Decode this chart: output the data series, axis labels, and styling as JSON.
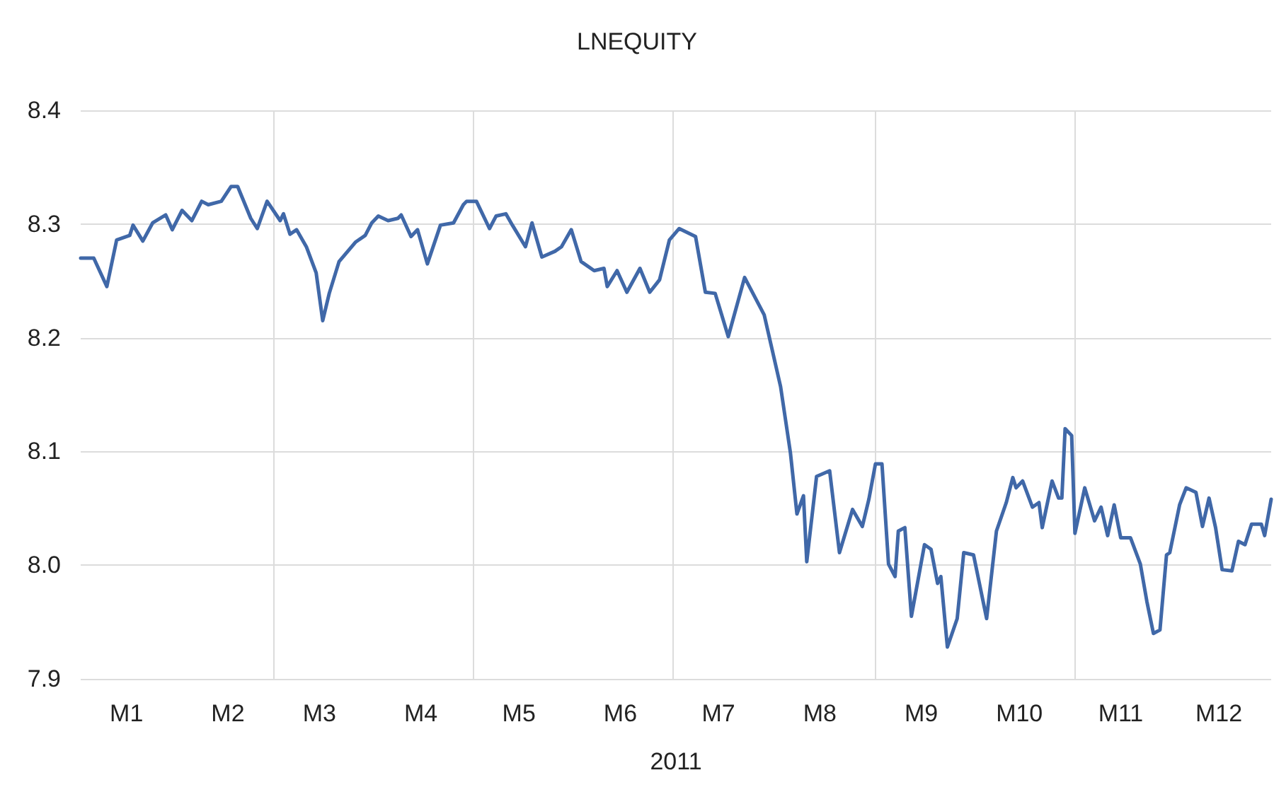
{
  "chart_data": {
    "type": "line",
    "title": "LNEQUITY",
    "xlabel": "2011",
    "x": [
      "2011-01-01",
      "2011-01-05",
      "2011-01-09",
      "2011-01-12",
      "2011-01-16",
      "2011-01-17",
      "2011-01-20",
      "2011-01-23",
      "2011-01-27",
      "2011-01-29",
      "2011-02-01",
      "2011-02-04",
      "2011-02-07",
      "2011-02-09",
      "2011-02-13",
      "2011-02-16",
      "2011-02-18",
      "2011-02-22",
      "2011-02-24",
      "2011-02-27",
      "2011-03-03",
      "2011-03-04",
      "2011-03-06",
      "2011-03-08",
      "2011-03-11",
      "2011-03-14",
      "2011-03-16",
      "2011-03-18",
      "2011-03-21",
      "2011-03-26",
      "2011-03-29",
      "2011-03-31",
      "2011-04-02",
      "2011-04-05",
      "2011-04-08",
      "2011-04-09",
      "2011-04-12",
      "2011-04-14",
      "2011-04-17",
      "2011-04-21",
      "2011-04-25",
      "2011-04-28",
      "2011-04-29",
      "2011-05-02",
      "2011-05-06",
      "2011-05-08",
      "2011-05-11",
      "2011-05-13",
      "2011-05-17",
      "2011-05-19",
      "2011-05-22",
      "2011-05-26",
      "2011-05-28",
      "2011-05-31",
      "2011-06-03",
      "2011-06-07",
      "2011-06-10",
      "2011-06-11",
      "2011-06-14",
      "2011-06-17",
      "2011-06-21",
      "2011-06-24",
      "2011-06-27",
      "2011-06-30",
      "2011-07-03",
      "2011-07-08",
      "2011-07-11",
      "2011-07-14",
      "2011-07-18",
      "2011-07-23",
      "2011-07-29",
      "2011-08-03",
      "2011-08-06",
      "2011-08-08",
      "2011-08-10",
      "2011-08-11",
      "2011-08-14",
      "2011-08-18",
      "2011-08-21",
      "2011-08-25",
      "2011-08-28",
      "2011-08-30",
      "2011-09-01",
      "2011-09-03",
      "2011-09-05",
      "2011-09-07",
      "2011-09-08",
      "2011-09-10",
      "2011-09-12",
      "2011-09-16",
      "2011-09-18",
      "2011-09-20",
      "2011-09-21",
      "2011-09-23",
      "2011-09-26",
      "2011-09-28",
      "2011-10-01",
      "2011-10-05",
      "2011-10-08",
      "2011-10-11",
      "2011-10-13",
      "2011-10-14",
      "2011-10-16",
      "2011-10-19",
      "2011-10-21",
      "2011-10-22",
      "2011-10-25",
      "2011-10-27",
      "2011-10-28",
      "2011-10-29",
      "2011-10-31",
      "2011-11-01",
      "2011-11-04",
      "2011-11-07",
      "2011-11-09",
      "2011-11-11",
      "2011-11-13",
      "2011-11-15",
      "2011-11-18",
      "2011-11-21",
      "2011-11-23",
      "2011-11-25",
      "2011-11-27",
      "2011-11-29",
      "2011-11-30",
      "2011-12-03",
      "2011-12-05",
      "2011-12-08",
      "2011-12-10",
      "2011-12-12",
      "2011-12-14",
      "2011-12-16",
      "2011-12-19",
      "2011-12-21",
      "2011-12-23",
      "2011-12-25",
      "2011-12-28",
      "2011-12-29",
      "2011-12-31"
    ],
    "series": [
      {
        "color": "#4068a8",
        "values": [
          8.27,
          8.27,
          8.245,
          8.286,
          8.29,
          8.299,
          8.285,
          8.301,
          8.308,
          8.295,
          8.312,
          8.303,
          8.32,
          8.317,
          8.32,
          8.333,
          8.333,
          8.305,
          8.296,
          8.32,
          8.303,
          8.309,
          8.291,
          8.295,
          8.28,
          8.257,
          8.215,
          8.239,
          8.267,
          8.284,
          8.29,
          8.301,
          8.307,
          8.303,
          8.305,
          8.308,
          8.289,
          8.295,
          8.265,
          8.299,
          8.301,
          8.317,
          8.32,
          8.32,
          8.296,
          8.307,
          8.309,
          8.299,
          8.28,
          8.301,
          8.271,
          8.276,
          8.28,
          8.295,
          8.267,
          8.259,
          8.261,
          8.245,
          8.259,
          8.24,
          8.261,
          8.24,
          8.251,
          8.286,
          8.296,
          8.289,
          8.24,
          8.239,
          8.201,
          8.253,
          8.22,
          8.157,
          8.099,
          8.045,
          8.061,
          8.003,
          8.078,
          8.083,
          8.011,
          8.049,
          8.034,
          8.058,
          8.089,
          8.089,
          8.001,
          7.99,
          8.03,
          8.033,
          7.955,
          8.018,
          8.014,
          7.984,
          7.99,
          7.928,
          7.953,
          8.011,
          8.009,
          7.953,
          8.03,
          8.055,
          8.077,
          8.068,
          8.074,
          8.051,
          8.055,
          8.033,
          8.074,
          8.059,
          8.059,
          8.12,
          8.114,
          8.028,
          8.068,
          8.039,
          8.051,
          8.026,
          8.053,
          8.024,
          8.024,
          8.001,
          7.968,
          7.94,
          7.943,
          8.009,
          8.011,
          8.053,
          8.068,
          8.064,
          8.034,
          8.059,
          8.033,
          7.996,
          7.995,
          8.021,
          8.018,
          8.036,
          8.036,
          8.026,
          8.058
        ]
      }
    ],
    "xlim": [
      "2011-01-01",
      "2011-12-31"
    ],
    "xticks": [
      {
        "value": "2011-01-15",
        "label": "M1"
      },
      {
        "value": "2011-02-15",
        "label": "M2"
      },
      {
        "value": "2011-03-01",
        "label": null
      },
      {
        "value": "2011-03-15",
        "label": "M3"
      },
      {
        "value": "2011-04-15",
        "label": "M4"
      },
      {
        "value": "2011-05-01",
        "label": null
      },
      {
        "value": "2011-05-15",
        "label": "M5"
      },
      {
        "value": "2011-06-15",
        "label": "M6"
      },
      {
        "value": "2011-07-01",
        "label": null
      },
      {
        "value": "2011-07-15",
        "label": "M7"
      },
      {
        "value": "2011-08-15",
        "label": "M8"
      },
      {
        "value": "2011-09-01",
        "label": null
      },
      {
        "value": "2011-09-15",
        "label": "M9"
      },
      {
        "value": "2011-10-15",
        "label": "M10"
      },
      {
        "value": "2011-11-01",
        "label": null
      },
      {
        "value": "2011-11-15",
        "label": "M11"
      },
      {
        "value": "2011-12-15",
        "label": "M12"
      }
    ],
    "ylim": [
      7.9,
      8.4
    ],
    "yticks": [
      {
        "value": 7.9,
        "label": "7.9"
      },
      {
        "value": 8.0,
        "label": "8.0"
      },
      {
        "value": 8.1,
        "label": "8.1"
      },
      {
        "value": 8.2,
        "label": "8.2"
      },
      {
        "value": 8.3,
        "label": "8.3"
      },
      {
        "value": 8.4,
        "label": "8.4"
      }
    ],
    "grid": true,
    "marker": "none",
    "line_style": "solid"
  }
}
